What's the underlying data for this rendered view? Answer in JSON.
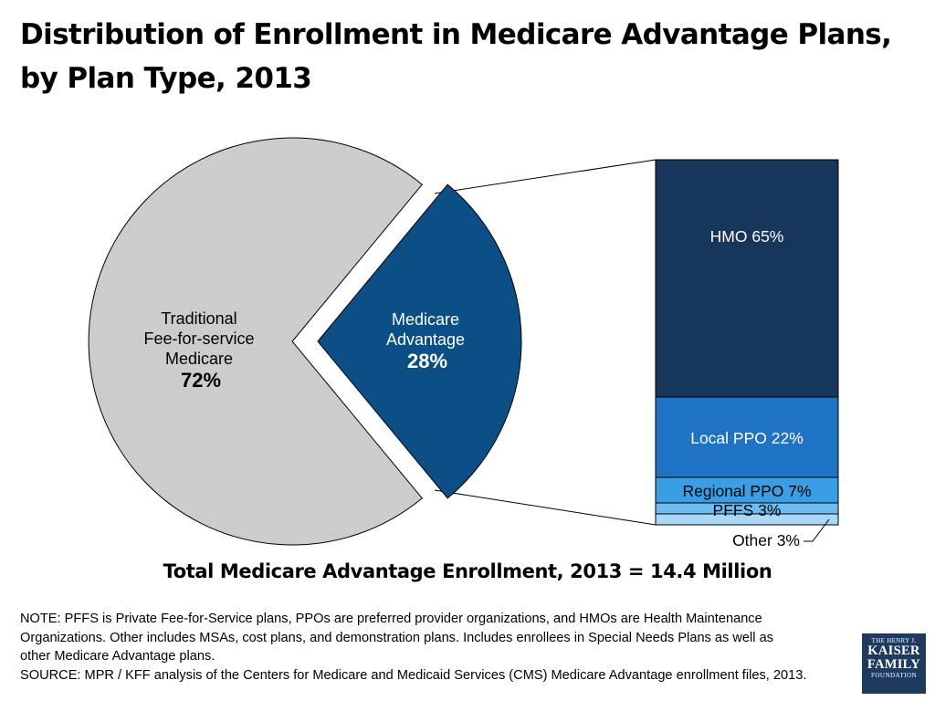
{
  "title": "Distribution of Enrollment in Medicare Advantage Plans, by Plan Type, 2013",
  "chart_data": [
    {
      "type": "pie",
      "slices": [
        {
          "label_lines": [
            "Traditional",
            "Fee-for-service",
            "Medicare"
          ],
          "pct_label": "72%",
          "value": 72,
          "color": "#cccccc"
        },
        {
          "label_lines": [
            "Medicare",
            "Advantage"
          ],
          "pct_label": "28%",
          "value": 28,
          "color": "#0b4f86"
        }
      ]
    },
    {
      "type": "bar",
      "stacked": true,
      "segments": [
        {
          "label": "HMO 65%",
          "value": 65,
          "color": "#16365c",
          "text_color": "#ffffff"
        },
        {
          "label": "Local PPO 22%",
          "value": 22,
          "color": "#1f73c4",
          "text_color": "#ffffff"
        },
        {
          "label": "Regional PPO 7%",
          "value": 7,
          "color": "#3a9ee4",
          "text_color": "#000000"
        },
        {
          "label": "PFFS 3%",
          "value": 3,
          "color": "#6fbdf0",
          "text_color": "#000000"
        },
        {
          "label": "Other 3%",
          "value": 3,
          "color": "#a8d8f6",
          "text_color": "#000000"
        }
      ]
    }
  ],
  "total": "Total Medicare Advantage Enrollment, 2013 = 14.4 Million",
  "note_lines": [
    "NOTE: PFFS is Private Fee-for-Service plans, PPOs are preferred provider organizations, and HMOs are Health Maintenance",
    "Organizations. Other includes MSAs, cost plans, and demonstration plans.  Includes enrollees in Special Needs Plans as well as",
    "other Medicare Advantage plans.",
    "SOURCE:  MPR / KFF analysis of the Centers for Medicare and Medicaid Services (CMS) Medicare Advantage enrollment files, 2013."
  ],
  "logo": {
    "line1": "THE HENRY J.",
    "line2": "KAISER",
    "line3": "FAMILY",
    "line4": "FOUNDATION"
  }
}
